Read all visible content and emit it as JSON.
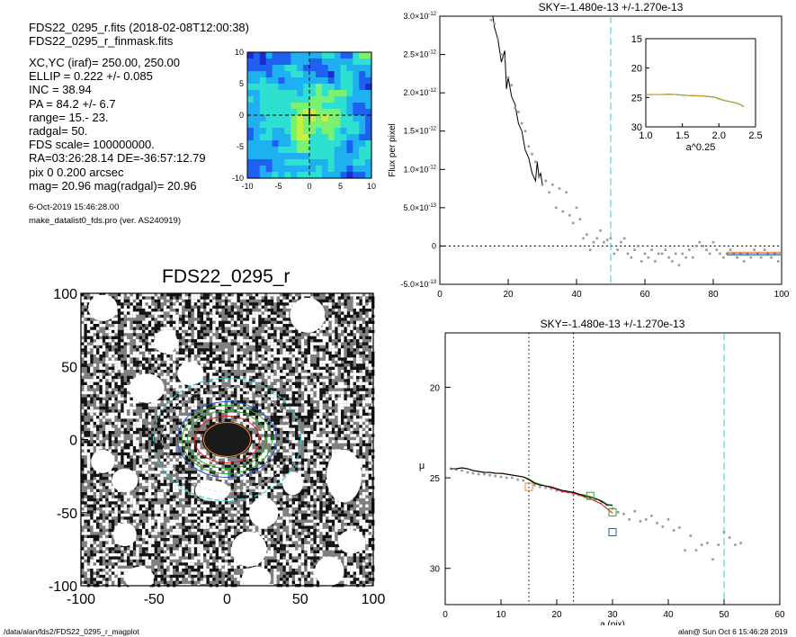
{
  "header": {
    "fits_line": "FDS22_0295_r.fits  (2018-02-08T12:00:38)",
    "mask_line": "FDS22_0295_r_finmask.fits"
  },
  "params": [
    "XC,YC (iraf)=   250.00, 250.00",
    "ELLIP = 0.222 +/- 0.085",
    "INC   = 38.94",
    "PA    =  84.2 +/-   6.7",
    "range=   15.-   23.",
    "radgal=   50.",
    "FDS scale=  100000000.",
    "RA=03:26:28.14   DE=-36:57:12.79",
    "pix 0 0.200 arcsec",
    "mag=  20.96  mag(radgal)=  20.96"
  ],
  "date_line": "6-Oct-2019 15:46:28.00",
  "prog_line": "make_datalist0_fds.pro (ver. AS240919)",
  "footer_left": "/data/alan/fds2/FDS22_0295_r_magplot",
  "footer_right": "alan@  Sun Oct  6 15:46:28 2019",
  "colors": {
    "profile": "#000000",
    "sky_line": "#33cccc",
    "red": "#dd2222",
    "green": "#22aa22",
    "blue": "#2255dd",
    "orange": "#ee8833"
  },
  "chart_data": [
    {
      "id": "map",
      "type": "heatmap",
      "title": "",
      "xlim": [
        -10,
        10
      ],
      "ylim": [
        -10,
        10
      ],
      "xticks": [
        -10,
        -5,
        0,
        5,
        10
      ],
      "yticks": [
        -10,
        -5,
        0,
        5,
        10
      ],
      "colormap": [
        "#1a2ccf",
        "#2060f0",
        "#1fb0f0",
        "#2ee0d0",
        "#7cf070",
        "#c8f040"
      ]
    },
    {
      "id": "image",
      "type": "image",
      "title": "FDS22_0295_r",
      "xlim": [
        -100,
        100
      ],
      "ylim": [
        -100,
        100
      ],
      "xticks": [
        -100,
        -50,
        0,
        50,
        100
      ],
      "yticks": [
        -100,
        -50,
        0,
        50,
        100
      ]
    },
    {
      "id": "flux",
      "type": "line",
      "title": "SKY=-1.480e-13 +/-1.270e-13",
      "xlabel": "",
      "ylabel": "Flux per pixel",
      "xlim": [
        0,
        100
      ],
      "ylim": [
        -5e-13,
        3e-12
      ],
      "xticks": [
        0,
        20,
        40,
        60,
        80,
        100
      ],
      "yticks": [
        {
          "v": 3e-12,
          "label": "3.0×10",
          "exp": "-12"
        },
        {
          "v": 2.5e-12,
          "label": "2.5×10",
          "exp": "-12"
        },
        {
          "v": 2e-12,
          "label": "2.0×10",
          "exp": "-12"
        },
        {
          "v": 1.5e-12,
          "label": "1.5×10",
          "exp": "-12"
        },
        {
          "v": 1e-12,
          "label": "1.0×10",
          "exp": "-12"
        },
        {
          "v": 5e-13,
          "label": "5.0×10",
          "exp": "-13"
        },
        {
          "v": 0,
          "label": "0",
          "exp": ""
        },
        {
          "v": -5e-13,
          "label": "-5.0×10",
          "exp": "-13"
        }
      ],
      "vline": 50,
      "series": [
        {
          "x": [
            15.5,
            16,
            17,
            18,
            19,
            19.5,
            20,
            21,
            22,
            23,
            24,
            25,
            26,
            27,
            28,
            28.5,
            29,
            29.5,
            30
          ],
          "values": [
            3e-12,
            2.85e-12,
            2.7e-12,
            2.4e-12,
            2.55e-12,
            2.05e-12,
            2.2e-12,
            1.95e-12,
            1.85e-12,
            1.6e-12,
            1.5e-12,
            1.25e-12,
            1.15e-12,
            9.5e-13,
            8.5e-13,
            1.1e-12,
            9e-13,
            9.5e-13,
            8e-13
          ]
        },
        {
          "x": [
            15,
            16,
            17,
            18,
            19,
            20,
            21,
            22,
            23,
            24,
            25,
            26,
            27,
            28,
            29,
            30,
            31,
            32,
            33,
            34,
            35,
            36,
            37,
            38,
            39,
            40,
            41,
            42,
            43,
            44,
            45,
            46,
            47,
            48,
            49,
            50,
            51,
            52,
            53,
            54,
            55,
            56,
            57,
            58,
            59,
            60,
            61,
            62,
            63,
            64,
            65,
            66,
            67,
            68,
            69,
            70,
            71,
            72,
            73,
            74,
            75,
            76,
            77,
            78,
            79,
            80,
            81,
            82,
            83,
            84,
            85,
            86,
            87,
            88,
            89,
            90,
            91,
            92,
            93,
            94,
            95,
            96,
            97,
            98,
            99,
            100
          ],
          "values": [
            2.95e-12,
            2.9e-12,
            2.7e-12,
            2.5e-12,
            2.45e-12,
            2.2e-12,
            2.1e-12,
            1.8e-12,
            1.75e-12,
            1.6e-12,
            1.5e-12,
            1.3e-12,
            1.2e-12,
            1.1e-12,
            9e-13,
            8e-13,
            8.5e-13,
            7e-13,
            8e-13,
            5e-13,
            7.5e-13,
            4.5e-13,
            7e-13,
            4e-13,
            3e-13,
            5e-13,
            3.5e-13,
            1e-13,
            1.5e-13,
            -5e-14,
            5e-14,
            1e-13,
            2e-13,
            5e-14,
            8e-14,
            1e-13,
            -1e-13,
            -5e-14,
            5e-14,
            1e-13,
            -1e-13,
            -1.5e-13,
            -5e-14,
            0.0,
            -2e-13,
            -1e-13,
            -1.5e-13,
            -5e-14,
            -2e-13,
            -1e-13,
            -1e-13,
            -5e-14,
            -1.5e-13,
            -2e-13,
            -1e-13,
            -2.5e-13,
            -1e-13,
            -1.5e-13,
            -5e-14,
            -1.5e-13,
            0.0,
            5e-14,
            0.0,
            -5e-14,
            -1e-13,
            5e-14,
            -5e-14,
            -1e-13,
            -1.5e-13,
            -1e-13,
            -5e-14,
            -1e-13,
            -1.5e-13,
            -1e-13,
            -2e-13,
            -1e-13,
            -1.5e-13,
            -5e-14,
            -1e-13,
            -1.5e-13,
            -5e-14,
            -1e-13,
            -1.5e-13,
            -1e-13,
            -2e-13,
            -1e-13
          ]
        }
      ]
    },
    {
      "id": "inset",
      "type": "line",
      "title": "",
      "xlabel": "a^0.25",
      "xlim": [
        1.0,
        2.5
      ],
      "ylim": [
        30,
        15
      ],
      "xticks": [
        1.0,
        1.5,
        2.0,
        2.5
      ],
      "xticklabels": [
        "1.0",
        "1.5",
        "2.0",
        "2.5"
      ],
      "yticks": [
        15,
        20,
        25,
        30
      ]
    },
    {
      "id": "mu",
      "type": "line",
      "title": "SKY=-1.480e-13 +/-1.270e-13",
      "xlabel": "a (pix)",
      "ylabel": "μ",
      "xlim": [
        0,
        60
      ],
      "ylim": [
        32,
        17
      ],
      "xticks": [
        0,
        10,
        20,
        30,
        40,
        50,
        60
      ],
      "yticks": [
        20,
        25,
        30
      ],
      "vlines_dotted": [
        15,
        23
      ],
      "vline_sky": 50,
      "profile_x": [
        1,
        2,
        3,
        4,
        5,
        6,
        7,
        8,
        9,
        10,
        11,
        12,
        13,
        14,
        15,
        16,
        17,
        18,
        19,
        20,
        21,
        22,
        23,
        24,
        25,
        26,
        27,
        28,
        29,
        30
      ],
      "profile_y": [
        24.5,
        24.5,
        24.45,
        24.5,
        24.6,
        24.65,
        24.7,
        24.7,
        24.75,
        24.75,
        24.8,
        24.85,
        24.9,
        24.95,
        25.1,
        25.3,
        25.4,
        25.45,
        25.5,
        25.6,
        25.7,
        25.75,
        25.8,
        25.9,
        26.0,
        26.05,
        26.15,
        26.3,
        26.5,
        26.5
      ],
      "profile_y_red": [
        24.5,
        24.5,
        24.45,
        24.5,
        24.6,
        24.65,
        24.7,
        24.7,
        24.75,
        24.75,
        24.8,
        24.85,
        24.9,
        24.95,
        25.1,
        25.3,
        25.4,
        25.45,
        25.55,
        25.65,
        25.75,
        25.8,
        25.85,
        25.95,
        26.05,
        26.15,
        26.3,
        26.45,
        26.7,
        26.95
      ],
      "profile_y_green": [
        24.5,
        24.5,
        24.45,
        24.5,
        24.6,
        24.65,
        24.7,
        24.7,
        24.75,
        24.75,
        24.8,
        24.85,
        24.9,
        24.95,
        25.05,
        25.25,
        25.35,
        25.45,
        25.55,
        25.6,
        25.7,
        25.75,
        25.8,
        25.9,
        25.95,
        26.05,
        26.15,
        26.25,
        26.45,
        26.55
      ],
      "points_x": [
        1,
        2,
        3,
        4,
        5,
        6,
        7,
        8,
        9,
        10,
        11,
        12,
        13,
        14,
        15,
        16,
        17,
        18,
        19,
        20,
        21,
        22,
        23,
        24,
        25,
        26,
        27,
        28,
        29,
        30,
        31,
        32,
        33,
        34,
        35,
        36,
        37,
        38,
        39,
        40,
        41,
        42,
        43,
        44,
        45,
        46,
        47,
        48,
        49,
        50,
        51,
        52,
        53
      ],
      "points_y": [
        24.5,
        24.55,
        24.6,
        24.7,
        24.75,
        24.8,
        24.8,
        24.85,
        24.9,
        24.95,
        25.0,
        25.0,
        25.1,
        25.15,
        25.3,
        25.4,
        25.5,
        25.55,
        25.6,
        25.7,
        25.75,
        25.8,
        25.9,
        25.95,
        26.05,
        26.1,
        26.2,
        26.35,
        26.5,
        26.7,
        26.9,
        27.0,
        27.3,
        26.85,
        27.4,
        27.3,
        27.1,
        27.5,
        27.7,
        27.3,
        27.9,
        27.75,
        29.0,
        28.2,
        29.0,
        28.7,
        28.6,
        29.5,
        28.7,
        28.0,
        28.3,
        28.7,
        28.6
      ],
      "markers": [
        {
          "shape": "square",
          "color": "orange",
          "x": 15,
          "y": 25.5
        },
        {
          "shape": "square",
          "color": "green",
          "x": 26,
          "y": 26.0
        },
        {
          "shape": "square",
          "color": "green",
          "x": 30,
          "y": 26.9
        },
        {
          "shape": "square",
          "color": "blue",
          "x": 30,
          "y": 28.0
        }
      ]
    }
  ]
}
